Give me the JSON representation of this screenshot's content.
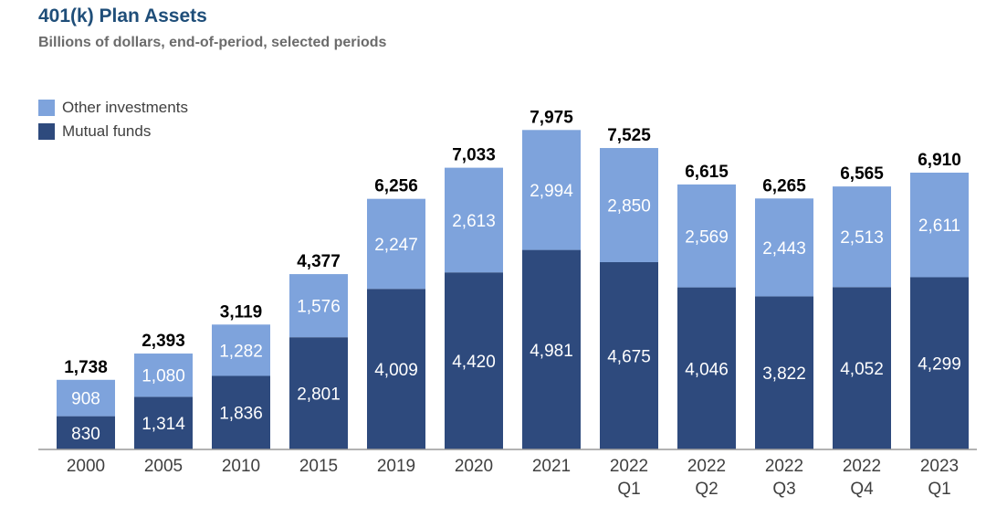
{
  "chart_data": {
    "type": "bar",
    "stacked": true,
    "title": "401(k) Plan Assets",
    "subtitle": "Billions of dollars, end-of-period, selected periods",
    "categories": [
      "2000",
      "2005",
      "2010",
      "2015",
      "2019",
      "2020",
      "2021",
      "2022\nQ1",
      "2022\nQ2",
      "2022\nQ3",
      "2022\nQ4",
      "2023\nQ1"
    ],
    "series": [
      {
        "name": "Mutual funds",
        "color": "#2e4a7d",
        "values": [
          830,
          1314,
          1836,
          2801,
          4009,
          4420,
          4981,
          4675,
          4046,
          3822,
          4052,
          4299
        ]
      },
      {
        "name": "Other investments",
        "color": "#7ea3dc",
        "values": [
          908,
          1080,
          1282,
          1576,
          2247,
          2613,
          2994,
          2850,
          2569,
          2443,
          2513,
          2611
        ]
      }
    ],
    "totals": [
      1738,
      2393,
      3119,
      4377,
      6256,
      7033,
      7975,
      7525,
      6615,
      6265,
      6565,
      6910
    ],
    "legend": [
      "Other investments",
      "Mutual funds"
    ],
    "legend_placement": "top-left",
    "ylim": [
      0,
      8500
    ],
    "grid": false
  }
}
